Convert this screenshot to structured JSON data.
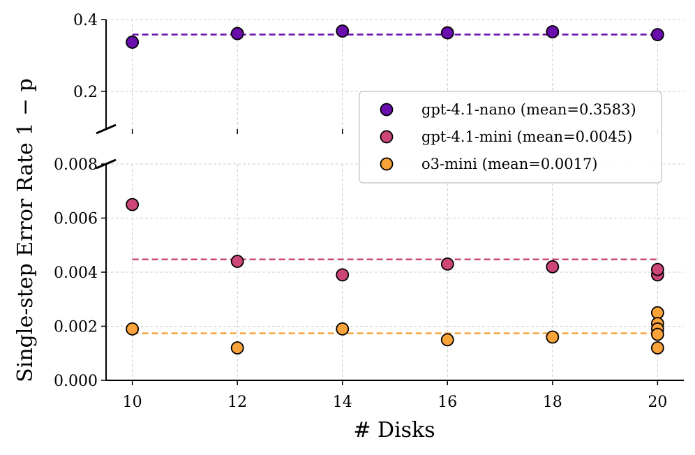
{
  "chart_data": {
    "type": "scatter",
    "xlabel": "# Disks",
    "ylabel": "Single-step Error Rate 1 − p",
    "x_ticks": [
      10,
      12,
      14,
      16,
      18,
      20
    ],
    "x_tick_labels": [
      "10",
      "12",
      "14",
      "16",
      "18",
      "20"
    ],
    "xlim": [
      9.5,
      20.5
    ],
    "broken_y_axis": true,
    "upper_panel": {
      "ylim": [
        0.1,
        0.4
      ],
      "y_ticks": [
        0.2,
        0.4
      ],
      "y_tick_labels": [
        "0.2",
        "0.4"
      ]
    },
    "lower_panel": {
      "ylim": [
        0.0,
        0.008
      ],
      "y_ticks": [
        0.0,
        0.002,
        0.004,
        0.006,
        0.008
      ],
      "y_tick_labels": [
        "0.000",
        "0.002",
        "0.004",
        "0.006",
        "0.008"
      ]
    },
    "grid": true,
    "legend_position": "upper-right",
    "series": [
      {
        "name": "gpt-4.1-nano (mean=0.3583)",
        "color": "#6a0dad",
        "panel": "upper",
        "mean": 0.3583,
        "points": [
          {
            "x": 10,
            "y": 0.337
          },
          {
            "x": 12,
            "y": 0.361
          },
          {
            "x": 14,
            "y": 0.368
          },
          {
            "x": 16,
            "y": 0.363
          },
          {
            "x": 18,
            "y": 0.366
          },
          {
            "x": 20,
            "y": 0.358
          }
        ]
      },
      {
        "name": "gpt-4.1-mini (mean=0.0045)",
        "color": "#cc4778",
        "panel": "lower",
        "mean": 0.00447,
        "points": [
          {
            "x": 10,
            "y": 0.0065
          },
          {
            "x": 12,
            "y": 0.0044
          },
          {
            "x": 14,
            "y": 0.0039
          },
          {
            "x": 16,
            "y": 0.0043
          },
          {
            "x": 18,
            "y": 0.0042
          },
          {
            "x": 20,
            "y": 0.0039
          },
          {
            "x": 20,
            "y": 0.0041
          }
        ]
      },
      {
        "name": "o3-mini (mean=0.0017)",
        "color": "#f9a33a",
        "panel": "lower",
        "mean": 0.00174,
        "points": [
          {
            "x": 10,
            "y": 0.0019
          },
          {
            "x": 12,
            "y": 0.0012
          },
          {
            "x": 14,
            "y": 0.0019
          },
          {
            "x": 16,
            "y": 0.0015
          },
          {
            "x": 18,
            "y": 0.0016
          },
          {
            "x": 20,
            "y": 0.0025
          },
          {
            "x": 20,
            "y": 0.0021
          },
          {
            "x": 20,
            "y": 0.0019
          },
          {
            "x": 20,
            "y": 0.0017
          },
          {
            "x": 20,
            "y": 0.0012
          }
        ]
      }
    ]
  }
}
